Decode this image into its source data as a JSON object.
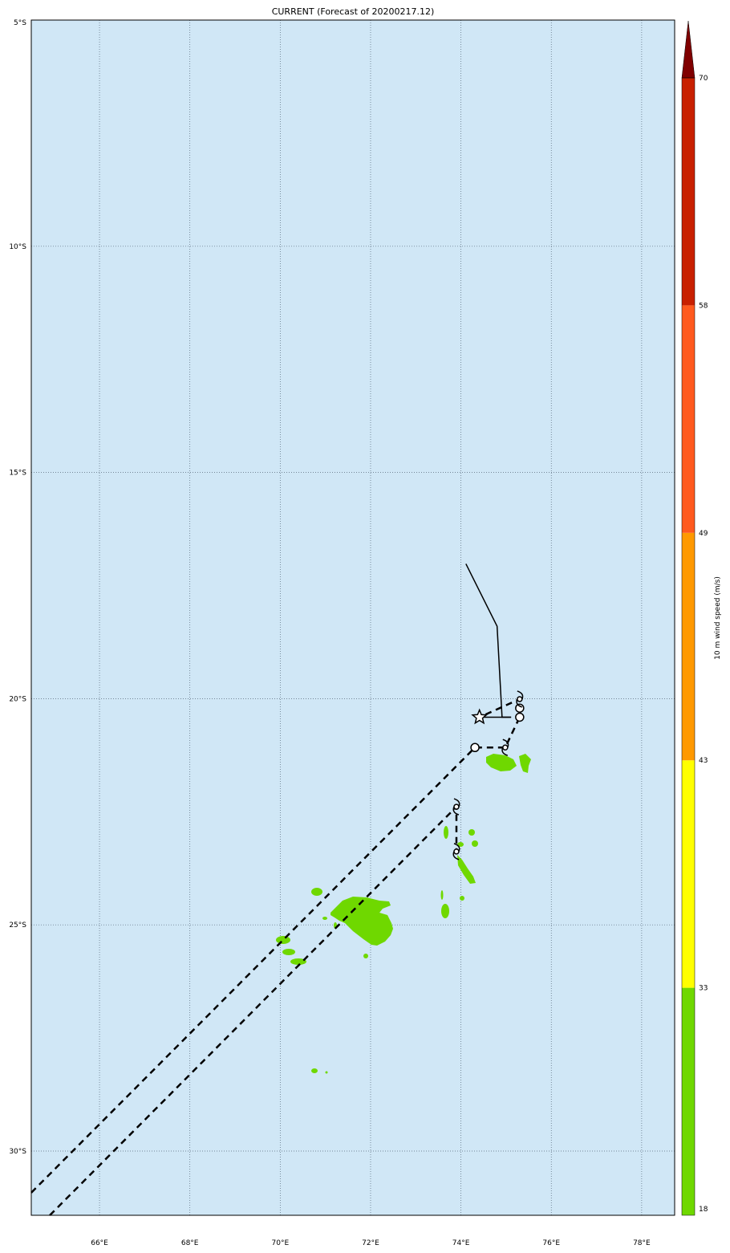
{
  "title": "CURRENT (Forecast of 20200217.12)",
  "map": {
    "lon_range": [
      64.49,
      78.73
    ],
    "lat_range": [
      -31.42,
      -5.0
    ],
    "ocean_color": "#d0e7f6",
    "land_wind_color": "#6fd800",
    "lon_ticks": [
      {
        "v": 66,
        "label": "66°E"
      },
      {
        "v": 68,
        "label": "68°E"
      },
      {
        "v": 70,
        "label": "70°E"
      },
      {
        "v": 72,
        "label": "72°E"
      },
      {
        "v": 74,
        "label": "74°E"
      },
      {
        "v": 76,
        "label": "76°E"
      },
      {
        "v": 78,
        "label": "78°E"
      }
    ],
    "lat_ticks": [
      {
        "v": -5,
        "label": "5°S"
      },
      {
        "v": -10,
        "label": "10°S"
      },
      {
        "v": -15,
        "label": "15°S"
      },
      {
        "v": -20,
        "label": "20°S"
      },
      {
        "v": -25,
        "label": "25°S"
      },
      {
        "v": -30,
        "label": "30°S"
      }
    ],
    "observed_track": [
      [
        74.11,
        -17.02
      ],
      [
        74.8,
        -18.4
      ],
      [
        74.91,
        -20.41
      ],
      [
        75.11,
        -20.41
      ]
    ],
    "observed_track_branch": [
      [
        74.41,
        -20.41
      ],
      [
        75.11,
        -20.41
      ]
    ],
    "current_position": [
      74.41,
      -20.41
    ],
    "forecast_track_1": [
      [
        64.49,
        -30.92
      ],
      [
        74.31,
        -21.08
      ],
      [
        74.98,
        -21.08
      ],
      [
        75.3,
        -20.41
      ],
      [
        75.3,
        -20.21
      ],
      [
        75.3,
        -20.01
      ],
      [
        74.41,
        -20.41
      ]
    ],
    "forecast_track_1_symbols": [
      {
        "type": "low",
        "pos": [
          74.31,
          -21.08
        ]
      },
      {
        "type": "storm",
        "pos": [
          74.98,
          -21.08
        ]
      },
      {
        "type": "low",
        "pos": [
          75.3,
          -20.41
        ]
      },
      {
        "type": "low",
        "pos": [
          75.3,
          -20.21
        ]
      },
      {
        "type": "storm",
        "pos": [
          75.3,
          -20.01
        ]
      }
    ],
    "forecast_track_2": [
      [
        64.9,
        -31.42
      ],
      [
        73.9,
        -22.39
      ],
      [
        73.9,
        -23.38
      ]
    ],
    "forecast_track_2_symbols": [
      {
        "type": "storm",
        "pos": [
          73.9,
          -22.39
        ]
      },
      {
        "type": "storm",
        "pos": [
          73.9,
          -23.38
        ]
      }
    ]
  },
  "colorbar": {
    "label": "10 m wind speed (m/s)",
    "levels": [
      18,
      33,
      43,
      49,
      58,
      70
    ],
    "level_labels": [
      "18",
      "33",
      "43",
      "49",
      "58",
      "70"
    ],
    "colors": [
      "#6fd800",
      "#ffff00",
      "#ff9900",
      "#ff5a1e",
      "#c82000"
    ],
    "extend_color": "#800000"
  }
}
